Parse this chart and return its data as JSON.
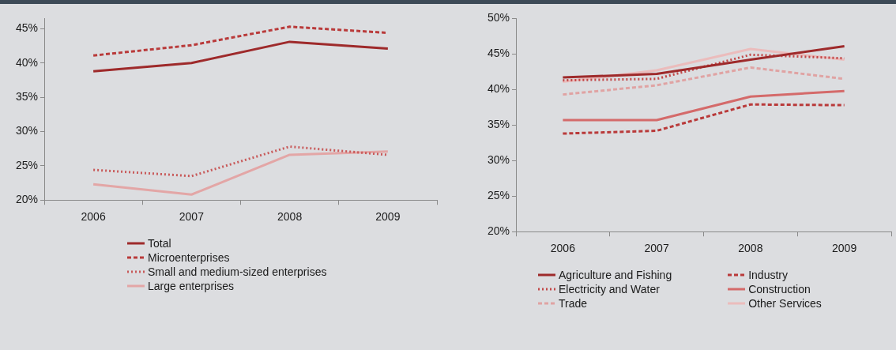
{
  "chart_data": [
    {
      "type": "line",
      "categories": [
        "2006",
        "2007",
        "2008",
        "2009"
      ],
      "ylim": [
        20,
        46.5
      ],
      "yticks": [
        {
          "value": 20,
          "label": "20%"
        },
        {
          "value": 25,
          "label": "25%"
        },
        {
          "value": 30,
          "label": "30%"
        },
        {
          "value": 35,
          "label": "35%"
        },
        {
          "value": 40,
          "label": "40%"
        },
        {
          "value": 45,
          "label": "45%"
        }
      ],
      "grid": false,
      "legend": "bottom",
      "marker": "none",
      "series": [
        {
          "name": "Total",
          "color": "#9e2a2b",
          "line_style": "solid",
          "values": [
            38.8,
            40.0,
            43.1,
            42.1
          ]
        },
        {
          "name": "Microenterprises",
          "color": "#b93a3a",
          "line_style": "dashed",
          "values": [
            41.1,
            42.6,
            45.3,
            44.4
          ]
        },
        {
          "name": "Small and medium-sized enterprises",
          "color": "#c85a5a",
          "line_style": "dotted",
          "values": [
            24.4,
            23.5,
            27.8,
            26.6
          ]
        },
        {
          "name": "Large enterprises",
          "color": "#e3a6a6",
          "line_style": "solid",
          "values": [
            22.3,
            20.8,
            26.6,
            27.1
          ]
        }
      ]
    },
    {
      "type": "line",
      "categories": [
        "2006",
        "2007",
        "2008",
        "2009"
      ],
      "ylim": [
        20,
        50
      ],
      "yticks": [
        {
          "value": 20,
          "label": "20%"
        },
        {
          "value": 25,
          "label": "25%"
        },
        {
          "value": 30,
          "label": "30%"
        },
        {
          "value": 35,
          "label": "35%"
        },
        {
          "value": 40,
          "label": "40%"
        },
        {
          "value": 45,
          "label": "45%"
        },
        {
          "value": 50,
          "label": "50%"
        }
      ],
      "grid": false,
      "legend": "bottom",
      "marker": "none",
      "series": [
        {
          "name": "Agriculture and Fishing",
          "color": "#9e2a2b",
          "line_style": "solid",
          "values": [
            41.7,
            42.2,
            44.2,
            46.1
          ]
        },
        {
          "name": "Industry",
          "color": "#b93a3a",
          "line_style": "dashed",
          "values": [
            33.8,
            34.2,
            37.9,
            37.8
          ]
        },
        {
          "name": "Electricity and Water",
          "color": "#c24848",
          "line_style": "dotted",
          "values": [
            41.3,
            41.5,
            44.9,
            44.4
          ]
        },
        {
          "name": "Construction",
          "color": "#d46a6a",
          "line_style": "solid",
          "values": [
            35.7,
            35.7,
            39.0,
            39.8
          ]
        },
        {
          "name": "Trade",
          "color": "#e0a3a3",
          "line_style": "dashed",
          "values": [
            39.3,
            40.6,
            43.1,
            41.5
          ]
        },
        {
          "name": "Other Services",
          "color": "#ebbcbc",
          "line_style": "solid",
          "values": [
            41.1,
            42.7,
            45.7,
            44.2
          ]
        }
      ]
    }
  ]
}
